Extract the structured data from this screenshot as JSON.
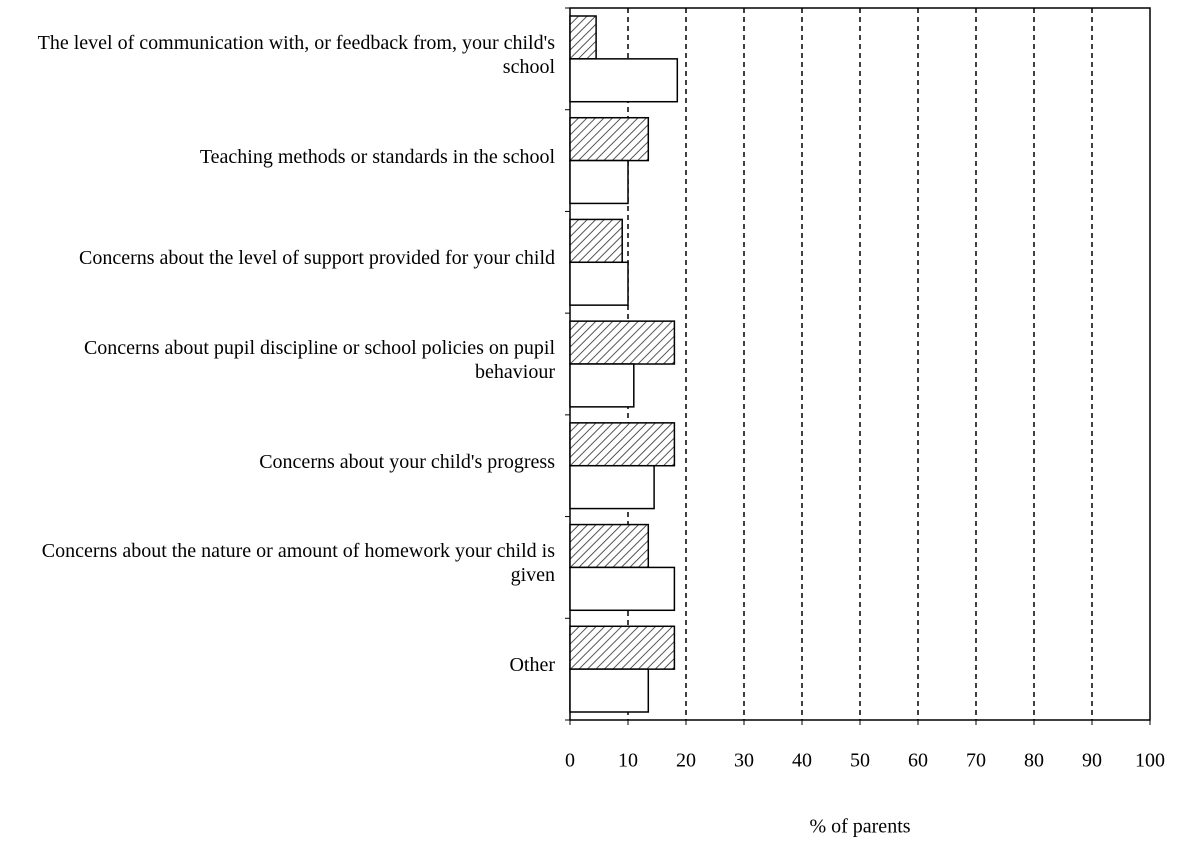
{
  "chart_data": {
    "type": "hbar",
    "categories": [
      "The level of communication with, or feedback from, your child's school",
      "Teaching methods or standards in the school",
      "Concerns about the level of support provided for your child",
      "Concerns about pupil discipline or school policies on pupil behaviour",
      "Concerns about your child's progress",
      "Concerns about the nature or amount of homework your child is given",
      "Other"
    ],
    "series": [
      {
        "color": "#ffffff",
        "hatch": true,
        "values": [
          4.5,
          13.5,
          9,
          18,
          18,
          13.5,
          18
        ]
      },
      {
        "color": "#ffffff",
        "hatch": false,
        "values": [
          18.5,
          10,
          10,
          11,
          14.5,
          18,
          13.5
        ]
      }
    ],
    "xlim": [
      0,
      100
    ],
    "xticks": [
      0,
      10,
      20,
      30,
      40,
      50,
      60,
      70,
      80,
      90,
      100
    ],
    "grid": true,
    "xlabel": "% of parents"
  }
}
